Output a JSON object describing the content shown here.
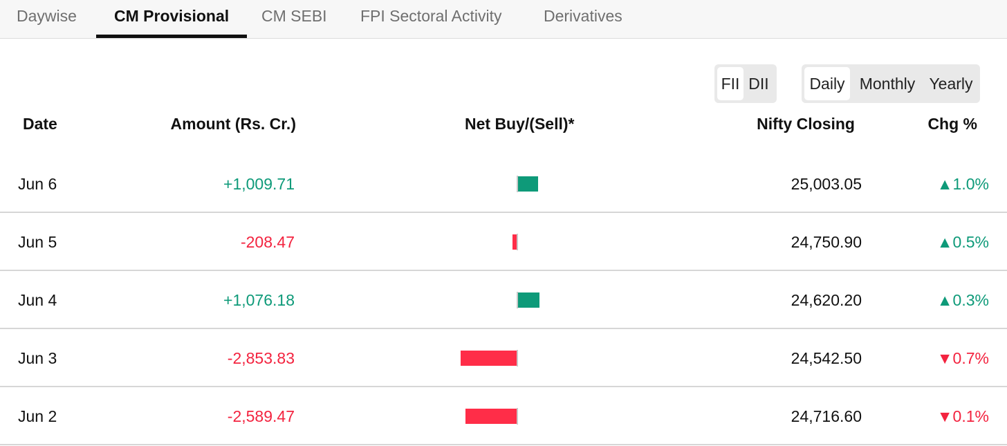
{
  "tabs": [
    {
      "label": "Daywise",
      "active": false
    },
    {
      "label": "CM Provisional",
      "active": true
    },
    {
      "label": "CM SEBI",
      "active": false
    },
    {
      "label": "FPI Sectoral Activity",
      "active": false
    },
    {
      "label": "Derivatives",
      "active": false
    }
  ],
  "investor_toggle": {
    "options": [
      "FII",
      "DII"
    ],
    "selected": "FII"
  },
  "period_toggle": {
    "options": [
      "Daily",
      "Monthly",
      "Yearly"
    ],
    "selected": "Daily"
  },
  "table": {
    "headers": {
      "date": "Date",
      "amount": "Amount (Rs. Cr.)",
      "net": "Net Buy/(Sell)*",
      "nifty": "Nifty Closing",
      "chg": "Chg %"
    },
    "rows": [
      {
        "date": "Jun 6",
        "amount_text": "+1,009.71",
        "amount": 1009.71,
        "nifty": "25,003.05",
        "chg_text": "▲1.0%",
        "chg_dir": "up"
      },
      {
        "date": "Jun 5",
        "amount_text": "-208.47",
        "amount": -208.47,
        "nifty": "24,750.90",
        "chg_text": "▲0.5%",
        "chg_dir": "up"
      },
      {
        "date": "Jun 4",
        "amount_text": "+1,076.18",
        "amount": 1076.18,
        "nifty": "24,620.20",
        "chg_text": "▲0.3%",
        "chg_dir": "up"
      },
      {
        "date": "Jun 3",
        "amount_text": "-2,853.83",
        "amount": -2853.83,
        "nifty": "24,542.50",
        "chg_text": "▼0.7%",
        "chg_dir": "down"
      },
      {
        "date": "Jun 2",
        "amount_text": "-2,589.47",
        "amount": -2589.47,
        "nifty": "24,716.60",
        "chg_text": "▼0.1%",
        "chg_dir": "down"
      }
    ]
  },
  "colors": {
    "positive": "#0e9a79",
    "negative": "#f3233f",
    "active_tab_underline": "#111111"
  }
}
